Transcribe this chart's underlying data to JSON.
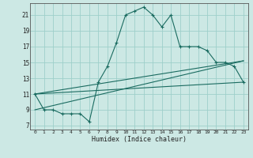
{
  "title": "",
  "xlabel": "Humidex (Indice chaleur)",
  "ylabel": "",
  "bg_color": "#cce8e4",
  "grid_color": "#9ecfca",
  "line_color": "#1a6b60",
  "xlim": [
    -0.5,
    23.5
  ],
  "ylim": [
    6.5,
    22.5
  ],
  "xticks": [
    0,
    1,
    2,
    3,
    4,
    5,
    6,
    7,
    8,
    9,
    10,
    11,
    12,
    13,
    14,
    15,
    16,
    17,
    18,
    19,
    20,
    21,
    22,
    23
  ],
  "yticks": [
    7,
    9,
    11,
    13,
    15,
    17,
    19,
    21
  ],
  "series1_x": [
    0,
    1,
    2,
    3,
    4,
    5,
    6,
    7,
    8,
    9,
    10,
    11,
    12,
    13,
    14,
    15,
    16,
    17,
    18,
    19,
    20,
    21,
    22,
    23
  ],
  "series1_y": [
    11,
    9,
    9,
    8.5,
    8.5,
    8.5,
    7.5,
    12.5,
    14.5,
    17.5,
    21,
    21.5,
    22,
    21,
    19.5,
    21,
    17,
    17,
    17,
    16.5,
    15,
    15,
    14.5,
    12.5
  ],
  "series2_x": [
    0,
    23
  ],
  "series2_y": [
    11,
    15.2
  ],
  "series3_x": [
    0,
    23
  ],
  "series3_y": [
    11,
    12.5
  ],
  "series4_x": [
    0,
    23
  ],
  "series4_y": [
    9,
    15.2
  ]
}
